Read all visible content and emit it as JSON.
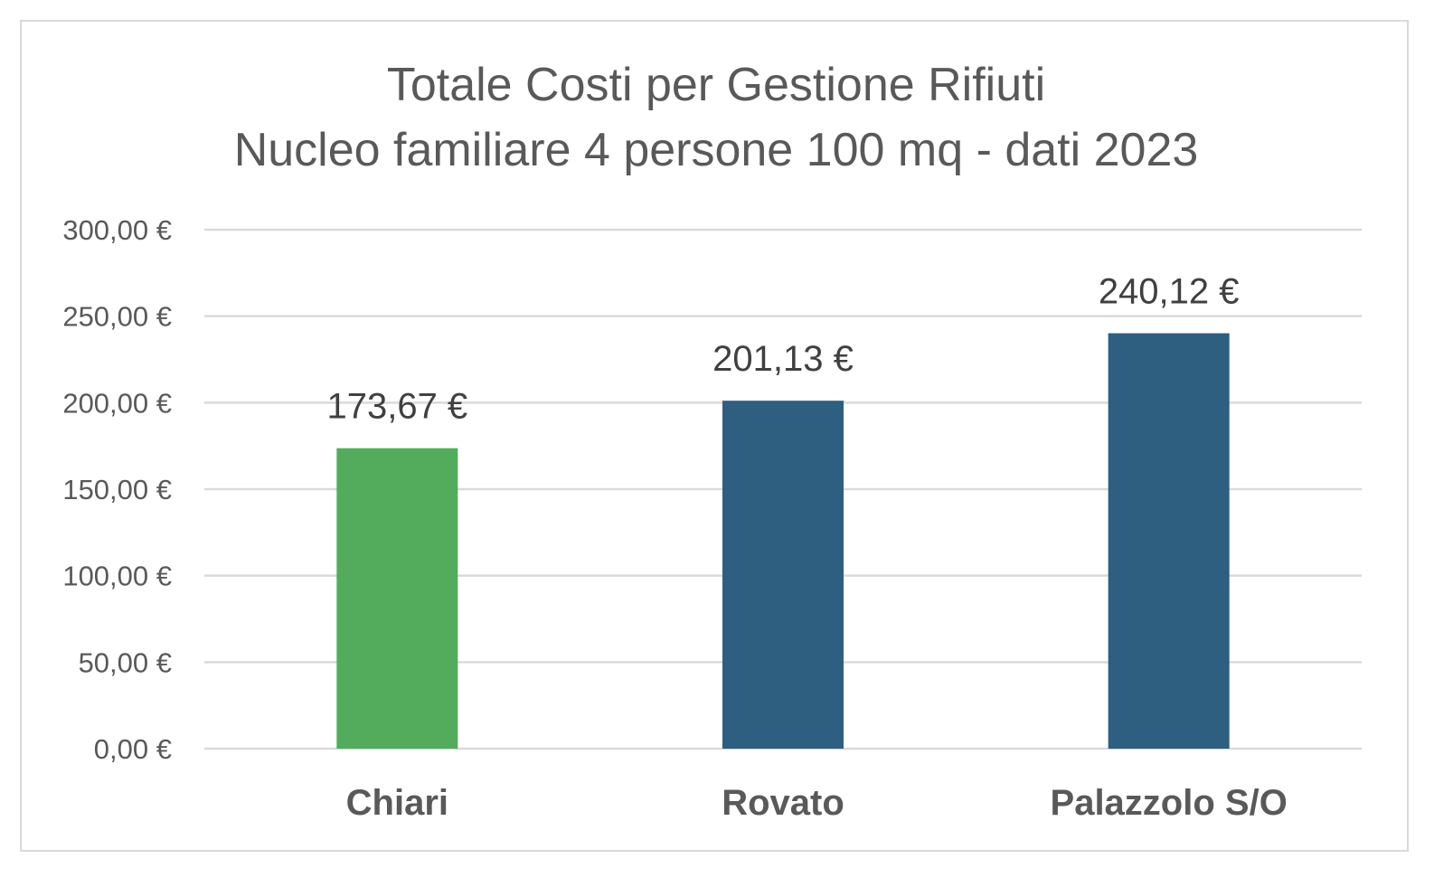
{
  "chart_data": {
    "type": "bar",
    "title": [
      "Totale Costi per Gestione Rifiuti",
      "Nucleo familiare 4 persone 100 mq - dati 2023"
    ],
    "xlabel": "",
    "ylabel": "",
    "categories": [
      "Chiari",
      "Rovato",
      "Palazzolo S/O"
    ],
    "values": [
      173.67,
      201.13,
      240.12
    ],
    "data_labels": [
      "173,67 €",
      "201,13 €",
      "240,12 €"
    ],
    "bar_colors": [
      "#52ac5c",
      "#2e5e80",
      "#2e5e80"
    ],
    "ylim": [
      0,
      300
    ],
    "yticks": [
      0,
      50,
      100,
      150,
      200,
      250,
      300
    ],
    "ytick_labels": [
      "0,00 €",
      "50,00 €",
      "100,00 €",
      "150,00 €",
      "200,00 €",
      "250,00 €",
      "300,00 €"
    ],
    "grid": true,
    "legend": "none"
  }
}
